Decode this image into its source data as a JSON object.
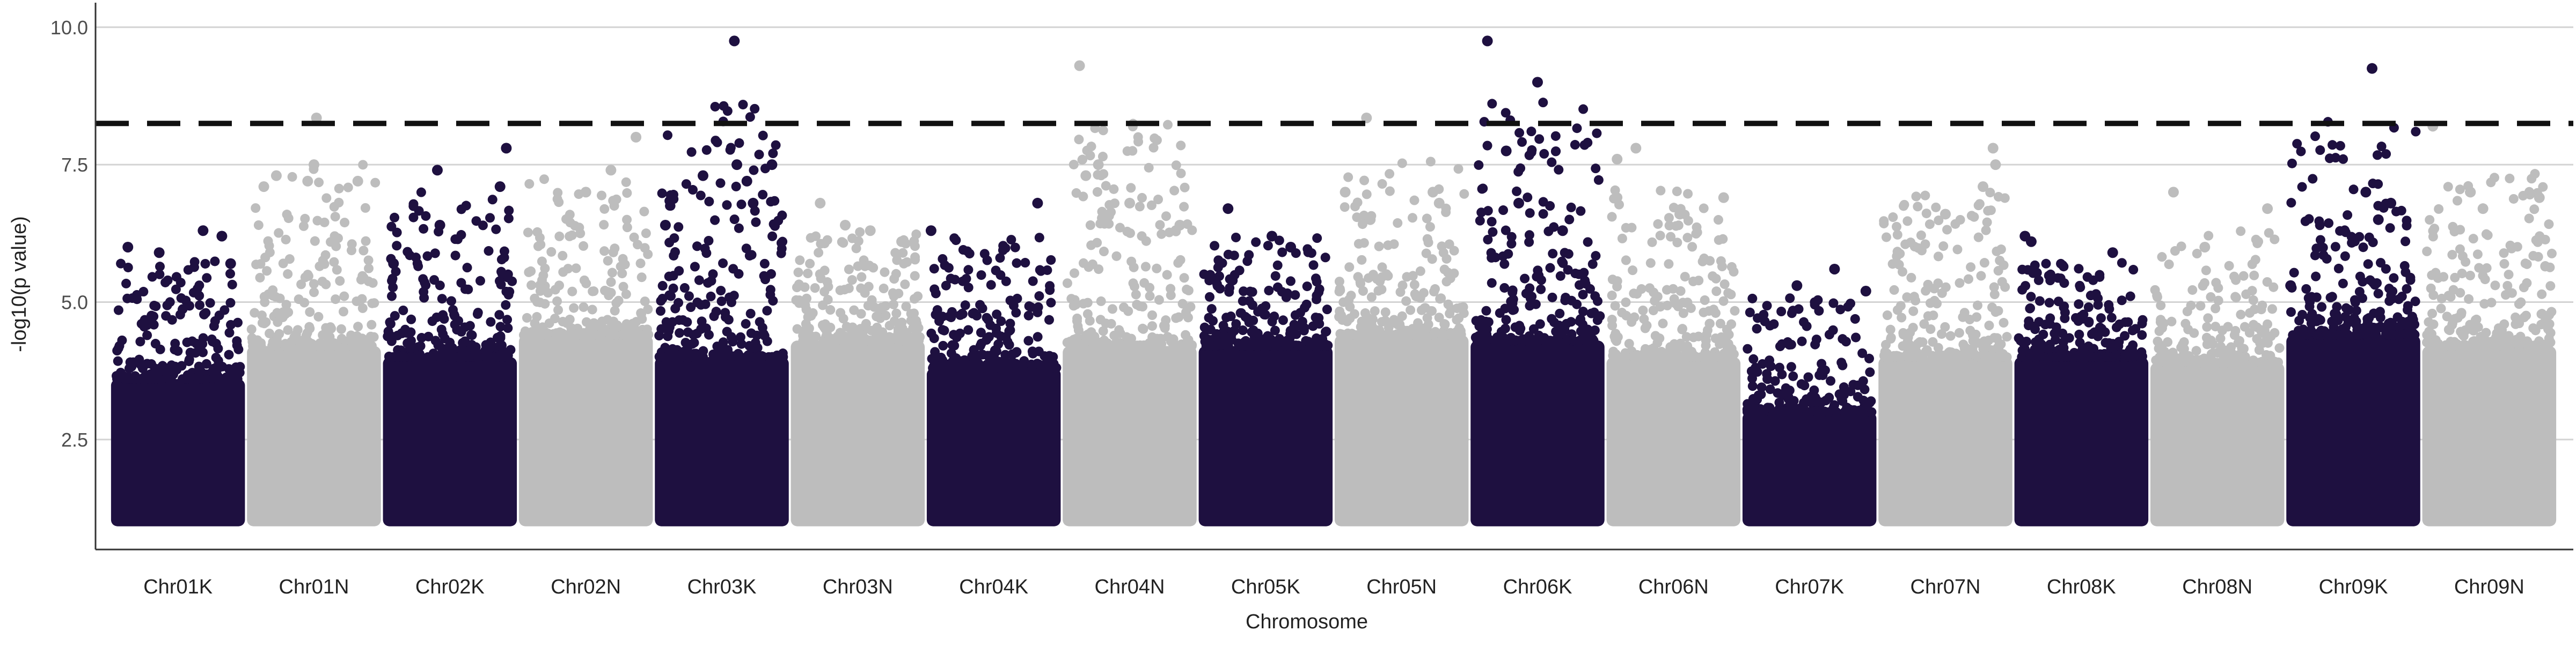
{
  "chart_data": {
    "type": "scatter",
    "subtype": "manhattan",
    "title": "",
    "xlabel": "Chromosome",
    "ylabel": "-log10(p value)",
    "ylim": [
      0.5,
      10.3
    ],
    "yticks": [
      2.5,
      5.0,
      7.5,
      10.0
    ],
    "ytick_labels": [
      "2.5",
      "5.0",
      "7.5",
      "10.0"
    ],
    "grid": "horizontal major",
    "legend": "none",
    "colors": {
      "odd": "#1e1040",
      "even": "#bdbdbd",
      "threshold": "#111111",
      "grid": "#d3d3d3"
    },
    "threshold": {
      "y": 8.25,
      "style": "dashed"
    },
    "categories": [
      "Chr01K",
      "Chr01N",
      "Chr02K",
      "Chr02N",
      "Chr03K",
      "Chr03N",
      "Chr04K",
      "Chr04N",
      "Chr05K",
      "Chr05N",
      "Chr06K",
      "Chr06N",
      "Chr07K",
      "Chr07N",
      "Chr08K",
      "Chr08N",
      "Chr09K",
      "Chr09N"
    ],
    "series": [
      {
        "chrom": "Chr01K",
        "min": 1.0,
        "dense_top": 3.6,
        "peak": 6.3,
        "outliers": [
          [
            0.1,
            6.0
          ],
          [
            0.35,
            5.9
          ],
          [
            0.7,
            6.3
          ],
          [
            0.85,
            6.2
          ],
          [
            0.92,
            5.7
          ]
        ]
      },
      {
        "chrom": "Chr01N",
        "min": 1.0,
        "dense_top": 4.2,
        "peak": 8.35,
        "outliers": [
          [
            0.1,
            7.1
          ],
          [
            0.2,
            7.3
          ],
          [
            0.45,
            7.2
          ],
          [
            0.5,
            7.5
          ],
          [
            0.52,
            8.35
          ],
          [
            0.85,
            7.2
          ]
        ]
      },
      {
        "chrom": "Chr02K",
        "min": 1.0,
        "dense_top": 4.0,
        "peak": 7.8,
        "outliers": [
          [
            0.05,
            5.7
          ],
          [
            0.4,
            7.4
          ],
          [
            0.42,
            6.4
          ],
          [
            0.9,
            7.1
          ],
          [
            0.95,
            7.8
          ]
        ]
      },
      {
        "chrom": "Chr02N",
        "min": 1.0,
        "dense_top": 4.4,
        "peak": 8.0,
        "outliers": [
          [
            0.5,
            7.0
          ],
          [
            0.7,
            7.4
          ],
          [
            0.9,
            8.0
          ]
        ]
      },
      {
        "chrom": "Chr03K",
        "min": 1.0,
        "dense_top": 4.0,
        "peak": 9.75,
        "outliers": [
          [
            0.05,
            6.4
          ],
          [
            0.35,
            7.3
          ],
          [
            0.6,
            9.75
          ],
          [
            0.62,
            7.5
          ],
          [
            0.7,
            7.2
          ],
          [
            0.9,
            7.5
          ],
          [
            0.75,
            6.8
          ]
        ]
      },
      {
        "chrom": "Chr03N",
        "min": 1.0,
        "dense_top": 4.3,
        "peak": 6.8,
        "outliers": [
          [
            0.2,
            6.8
          ],
          [
            0.4,
            6.4
          ],
          [
            0.6,
            6.3
          ],
          [
            0.85,
            6.1
          ]
        ]
      },
      {
        "chrom": "Chr04K",
        "min": 1.0,
        "dense_top": 3.8,
        "peak": 6.8,
        "outliers": [
          [
            0.0,
            6.3
          ],
          [
            0.85,
            6.8
          ]
        ]
      },
      {
        "chrom": "Chr04N",
        "min": 1.0,
        "dense_top": 4.2,
        "peak": 9.3,
        "outliers": [
          [
            0.1,
            9.3
          ],
          [
            0.25,
            7.5
          ],
          [
            0.15,
            7.3
          ],
          [
            0.5,
            6.8
          ],
          [
            0.9,
            6.4
          ]
        ]
      },
      {
        "chrom": "Chr05K",
        "min": 1.0,
        "dense_top": 4.2,
        "peak": 6.7,
        "outliers": [
          [
            0.2,
            6.7
          ],
          [
            0.55,
            6.2
          ],
          [
            0.7,
            6.0
          ]
        ]
      },
      {
        "chrom": "Chr05N",
        "min": 1.0,
        "dense_top": 4.4,
        "peak": 8.35,
        "outliers": [
          [
            0.05,
            7.0
          ],
          [
            0.25,
            6.5
          ],
          [
            0.22,
            8.35
          ],
          [
            0.75,
            7.0
          ],
          [
            0.8,
            6.8
          ]
        ]
      },
      {
        "chrom": "Chr06K",
        "min": 1.0,
        "dense_top": 4.3,
        "peak": 9.75,
        "outliers": [
          [
            0.1,
            9.75
          ],
          [
            0.25,
            7.75
          ],
          [
            0.35,
            6.8
          ],
          [
            0.5,
            9.0
          ],
          [
            0.7,
            6.3
          ]
        ]
      },
      {
        "chrom": "Chr06N",
        "min": 1.0,
        "dense_top": 4.0,
        "peak": 7.8,
        "outliers": [
          [
            0.05,
            7.6
          ],
          [
            0.2,
            7.8
          ],
          [
            0.55,
            6.6
          ],
          [
            0.9,
            6.9
          ]
        ]
      },
      {
        "chrom": "Chr07K",
        "min": 1.0,
        "dense_top": 3.0,
        "peak": 5.6,
        "outliers": [
          [
            0.4,
            5.3
          ],
          [
            0.7,
            5.6
          ],
          [
            0.95,
            5.2
          ]
        ]
      },
      {
        "chrom": "Chr07N",
        "min": 1.0,
        "dense_top": 4.0,
        "peak": 7.8,
        "outliers": [
          [
            0.5,
            6.6
          ],
          [
            0.8,
            7.1
          ],
          [
            0.88,
            7.8
          ],
          [
            0.9,
            7.5
          ]
        ]
      },
      {
        "chrom": "Chr08K",
        "min": 1.0,
        "dense_top": 4.0,
        "peak": 6.2,
        "outliers": [
          [
            0.05,
            6.2
          ],
          [
            0.1,
            6.1
          ],
          [
            0.75,
            5.9
          ]
        ]
      },
      {
        "chrom": "Chr08N",
        "min": 1.0,
        "dense_top": 3.9,
        "peak": 7.0,
        "outliers": [
          [
            0.15,
            7.0
          ],
          [
            0.4,
            6.0
          ],
          [
            0.9,
            6.7
          ]
        ]
      },
      {
        "chrom": "Chr09K",
        "min": 1.0,
        "dense_top": 4.4,
        "peak": 9.25,
        "outliers": [
          [
            0.0,
            5.3
          ],
          [
            0.6,
            7.0
          ],
          [
            0.8,
            6.8
          ],
          [
            0.65,
            9.25
          ],
          [
            0.7,
            6.5
          ]
        ]
      },
      {
        "chrom": "Chr09N",
        "min": 1.0,
        "dense_top": 4.2,
        "peak": 8.2,
        "outliers": [
          [
            0.05,
            8.2
          ],
          [
            0.35,
            7.0
          ],
          [
            0.45,
            6.7
          ],
          [
            0.9,
            6.9
          ]
        ]
      }
    ]
  }
}
